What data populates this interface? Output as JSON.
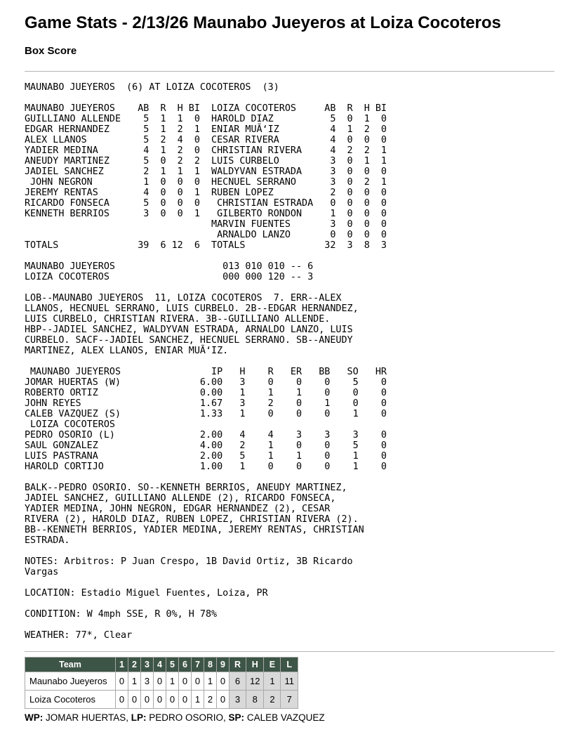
{
  "page": {
    "title": "Game Stats - 2/13/26 Maunabo Jueyeros at Loiza Cocoteros",
    "section_heading": "Box Score"
  },
  "box": {
    "matchup_line": "MAUNABO JUEYEROS  (6) AT LOIZA COCOTEROS  (3)",
    "batting": {
      "columns": [
        "AB",
        "R",
        "H",
        "BI"
      ],
      "away": {
        "team": "MAUNABO JUEYEROS",
        "players": [
          [
            "GUILLIANO ALLENDE",
            5,
            1,
            1,
            0
          ],
          [
            "EDGAR HERNANDEZ",
            5,
            1,
            2,
            1
          ],
          [
            "ALEX LLANOS",
            5,
            2,
            4,
            0
          ],
          [
            "YADIER MEDINA",
            4,
            1,
            2,
            0
          ],
          [
            "ANEUDY MARTINEZ",
            5,
            0,
            2,
            2
          ],
          [
            "JADIEL SANCHEZ",
            2,
            1,
            1,
            1
          ],
          [
            " JOHN NEGRON",
            1,
            0,
            0,
            0
          ],
          [
            "JEREMY RENTAS",
            4,
            0,
            0,
            1
          ],
          [
            "RICARDO FONSECA",
            5,
            0,
            0,
            0
          ],
          [
            "KENNETH BERRIOS",
            3,
            0,
            0,
            1
          ]
        ],
        "totals": [
          "TOTALS",
          39,
          6,
          12,
          6
        ]
      },
      "home": {
        "team": "LOIZA COCOTEROS",
        "players": [
          [
            "HAROLD DIAZ",
            5,
            0,
            1,
            0
          ],
          [
            "ENIAR MUÃ‘IZ",
            4,
            1,
            2,
            0
          ],
          [
            "CESAR RIVERA",
            4,
            0,
            0,
            0
          ],
          [
            "CHRISTIAN RIVERA",
            4,
            2,
            2,
            1
          ],
          [
            "LUIS CURBELO",
            3,
            0,
            1,
            1
          ],
          [
            "WALDYVAN ESTRADA",
            3,
            0,
            0,
            0
          ],
          [
            "HECNUEL SERRANO",
            3,
            0,
            2,
            1
          ],
          [
            "RUBEN LOPEZ",
            2,
            0,
            0,
            0
          ],
          [
            " CHRISTIAN ESTRADA",
            0,
            0,
            0,
            0
          ],
          [
            " GILBERTO RONDON",
            1,
            0,
            0,
            0
          ],
          [
            "MARVIN FUENTES",
            3,
            0,
            0,
            0
          ],
          [
            " ARNALDO LANZO",
            0,
            0,
            0,
            0
          ]
        ],
        "totals": [
          "TOTALS",
          32,
          3,
          8,
          3
        ]
      }
    },
    "linescore": [
      [
        "MAUNABO JUEYEROS",
        "013 010 010 -- 6"
      ],
      [
        "LOIZA COCOTEROS",
        "000 000 120 -- 3"
      ]
    ],
    "notes1_lines": [
      "LOB--MAUNABO JUEYEROS  11, LOIZA COCOTEROS  7. ERR--ALEX",
      "LLANOS, HECNUEL SERRANO, LUIS CURBELO. 2B--EDGAR HERNANDEZ,",
      "LUIS CURBELO, CHRISTIAN RIVERA. 3B--GUILLIANO ALLENDE.",
      "HBP--JADIEL SANCHEZ, WALDYVAN ESTRADA, ARNALDO LANZO, LUIS",
      "CURBELO. SACF--JADIEL SANCHEZ, HECNUEL SERRANO. SB--ANEUDY",
      "MARTINEZ, ALEX LLANOS, ENIAR MUÃ‘IZ."
    ],
    "pitching": {
      "columns": [
        "IP",
        "H",
        "R",
        "ER",
        "BB",
        "SO",
        "HR"
      ],
      "groups": [
        {
          "team": " MAUNABO JUEYEROS",
          "pitchers": [
            [
              "JOMAR HUERTAS (W)",
              "6.00",
              3,
              0,
              0,
              0,
              5,
              0
            ],
            [
              "ROBERTO ORTIZ",
              "0.00",
              1,
              1,
              1,
              0,
              0,
              0
            ],
            [
              "JOHN REYES",
              "1.67",
              3,
              2,
              0,
              1,
              0,
              0
            ],
            [
              "CALEB VAZQUEZ (S)",
              "1.33",
              1,
              0,
              0,
              0,
              1,
              0
            ]
          ]
        },
        {
          "team": " LOIZA COCOTEROS",
          "pitchers": [
            [
              "PEDRO OSORIO (L)",
              "2.00",
              4,
              4,
              3,
              3,
              3,
              0
            ],
            [
              "SAUL GONZALEZ",
              "4.00",
              2,
              1,
              0,
              0,
              5,
              0
            ],
            [
              "LUIS PASTRANA",
              "2.00",
              5,
              1,
              1,
              0,
              1,
              0
            ],
            [
              "HAROLD CORTIJO",
              "1.00",
              1,
              0,
              0,
              0,
              1,
              0
            ]
          ]
        }
      ]
    },
    "notes2_lines": [
      "BALK--PEDRO OSORIO. SO--KENNETH BERRIOS, ANEUDY MARTINEZ,",
      "JADIEL SANCHEZ, GUILLIANO ALLENDE (2), RICARDO FONSECA,",
      "YADIER MEDINA, JOHN NEGRON, EDGAR HERNANDEZ (2), CESAR",
      "RIVERA (2), HAROLD DIAZ, RUBEN LOPEZ, CHRISTIAN RIVERA (2).",
      "BB--KENNETH BERRIOS, YADIER MEDINA, JEREMY RENTAS, CHRISTIAN",
      "ESTRADA."
    ],
    "notes3_lines": [
      "NOTES: Arbitros: P Juan Crespo, 1B David Ortiz, 3B Ricardo",
      "Vargas"
    ],
    "location_line": "LOCATION: Estadio Miguel Fuentes, Loiza, PR",
    "condition_line": "CONDITION: W 4mph SSE, R 0%, H 78%",
    "weather_line": "WEATHER: 77*, Clear"
  },
  "summary_table": {
    "headers": [
      "Team",
      "1",
      "2",
      "3",
      "4",
      "5",
      "6",
      "7",
      "8",
      "9",
      "R",
      "H",
      "E",
      "L"
    ],
    "rows": [
      {
        "team": "Maunabo Jueyeros",
        "innings": [
          0,
          1,
          3,
          0,
          1,
          0,
          0,
          1,
          0
        ],
        "totals": [
          6,
          12,
          1,
          11
        ]
      },
      {
        "team": "Loiza Cocoteros",
        "innings": [
          0,
          0,
          0,
          0,
          0,
          0,
          1,
          2,
          0
        ],
        "totals": [
          3,
          8,
          2,
          7
        ]
      }
    ],
    "header_bg": "#3d5546",
    "totals_bg": "#d9d9d9"
  },
  "credits": {
    "parts": [
      {
        "label": "WP:",
        "value": "JOMAR HUERTAS"
      },
      {
        "label": "LP:",
        "value": "PEDRO OSORIO"
      },
      {
        "label": "SP:",
        "value": "CALEB VAZQUEZ"
      }
    ],
    "separator": ", "
  }
}
